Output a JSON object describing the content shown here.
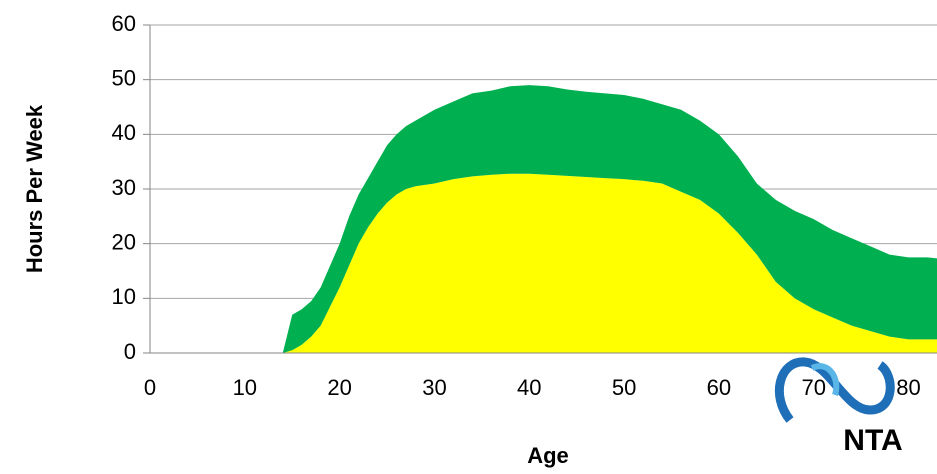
{
  "chart_data": {
    "type": "stacked_area",
    "x_label": "Age",
    "y_label": "Hours Per Week",
    "logo_text": "NTA",
    "x": [
      14,
      15,
      16,
      17,
      18,
      19,
      20,
      21,
      22,
      23,
      24,
      25,
      26,
      27,
      28,
      30,
      32,
      34,
      36,
      38,
      40,
      42,
      44,
      46,
      48,
      50,
      52,
      54,
      56,
      58,
      60,
      62,
      64,
      66,
      68,
      70,
      72,
      74,
      76,
      78,
      80,
      82,
      83
    ],
    "series": [
      {
        "color": "#ffff00",
        "values": [
          0,
          0.5,
          1.5,
          3,
          5,
          8.5,
          12,
          16,
          20,
          23,
          25.5,
          27.5,
          29,
          30,
          30.5,
          31,
          31.8,
          32.3,
          32.6,
          32.8,
          32.8,
          32.6,
          32.4,
          32.2,
          32,
          31.8,
          31.5,
          31,
          29.5,
          28,
          25.5,
          22,
          18,
          13,
          10,
          8,
          6.5,
          5,
          4,
          3,
          2.5,
          2.5,
          2.5
        ]
      },
      {
        "color": "#00b050",
        "values": [
          0,
          6.5,
          6.5,
          6.5,
          7,
          7.5,
          8,
          9,
          9,
          9,
          9.5,
          10.5,
          11,
          11.5,
          12,
          13.5,
          14.2,
          15.2,
          15.4,
          16,
          16.2,
          16.2,
          15.8,
          15.6,
          15.5,
          15.4,
          15,
          14.5,
          15,
          14.5,
          14.5,
          14,
          13,
          15,
          16,
          16.5,
          16,
          16,
          15.5,
          15,
          15,
          15,
          14.8
        ]
      }
    ],
    "xlim": [
      0,
      83
    ],
    "xticks": [
      0,
      10,
      20,
      30,
      40,
      50,
      60,
      70,
      80
    ],
    "ylim": [
      0,
      60
    ],
    "yticks": [
      0,
      10,
      20,
      30,
      40,
      50,
      60
    ],
    "grid": true
  }
}
